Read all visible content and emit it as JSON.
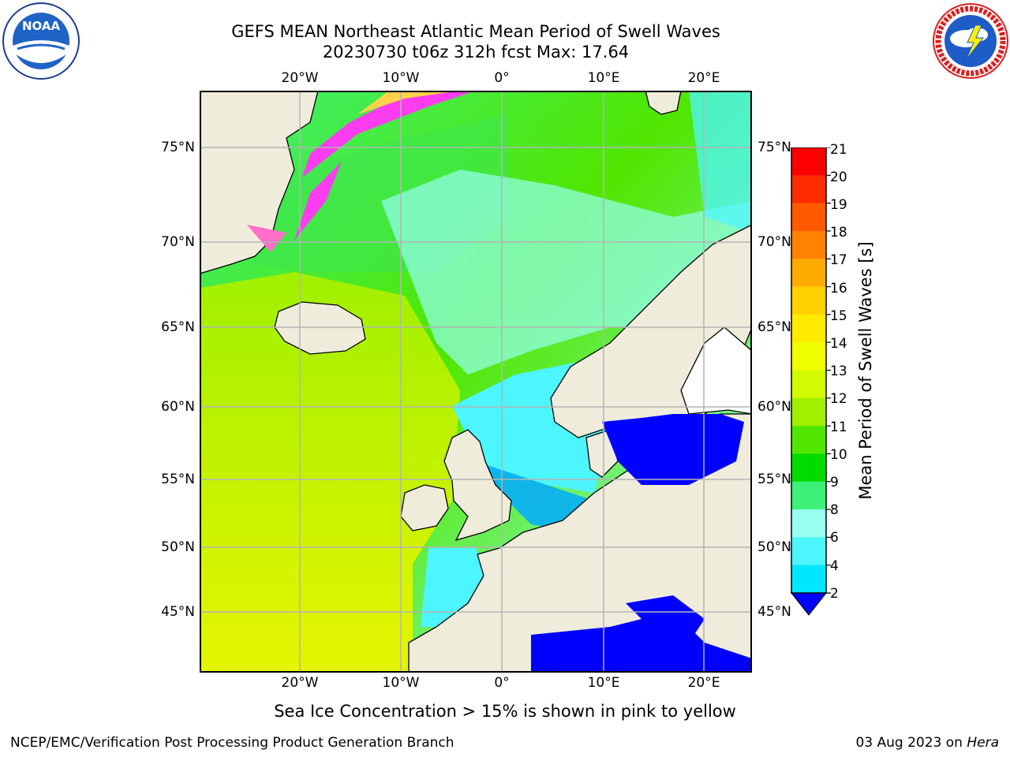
{
  "header": {
    "title_line1": "GEFS MEAN Northeast Atlantic Mean Period of Swell Waves",
    "title_line2": "20230730 t06z 312h fcst   Max: 17.64"
  },
  "logos": {
    "left": {
      "icon": "noaa-logo",
      "text": "NOAA",
      "ring_text": "NATIONAL OCEANIC AND ATMOSPHERIC ADMINISTRATION · U.S. DEPARTMENT OF COMMERCE"
    },
    "right": {
      "icon": "national-weather-service-logo",
      "ring_text": "NATIONAL WEATHER SERVICE"
    }
  },
  "map": {
    "lon_labels": [
      "20°W",
      "10°W",
      "0°",
      "10°E",
      "20°E"
    ],
    "lat_labels": [
      "75°N",
      "70°N",
      "65°N",
      "60°N",
      "55°N",
      "50°N",
      "45°N"
    ],
    "colors": {
      "land": "#efecdc",
      "coast": "#000000",
      "grid": "#b4b4b4",
      "sea_ice_pink": "#ff3cf0",
      "sea_ice_yellow": "#ffd24a"
    }
  },
  "colorbar": {
    "label": "Mean Period of Swell Waves [s]",
    "ticks": [
      "21",
      "20",
      "19",
      "18",
      "17",
      "16",
      "15",
      "14",
      "13",
      "12",
      "11",
      "10",
      "9",
      "8",
      "6",
      "4",
      "2"
    ],
    "bin_colors": [
      "#0a3cff",
      "#00aaff",
      "#00e6ff",
      "#4df5ff",
      "#96fff0",
      "#3cf078",
      "#00dc00",
      "#50e600",
      "#a0f000",
      "#d2fa00",
      "#f0ff00",
      "#ffeb00",
      "#ffd200",
      "#ffaa00",
      "#ff8200",
      "#ff5a00",
      "#ff2d00",
      "#ff0000"
    ],
    "under_color": "#0000ff"
  },
  "footer": {
    "ice_note": "Sea Ice Concentration > 15% is shown in pink to yellow",
    "left": "NCEP/EMC/Verification Post Processing Product Generation Branch",
    "right_date": "03 Aug 2023 on ",
    "right_host": "Hera"
  }
}
